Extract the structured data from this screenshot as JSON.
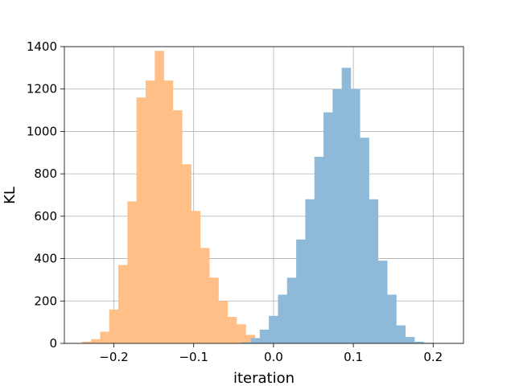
{
  "chart_data": {
    "type": "histogram",
    "title": "",
    "xlabel": "iteration",
    "ylabel": "KL",
    "xlim": [
      -0.262,
      0.238
    ],
    "ylim": [
      0,
      1400
    ],
    "xticks": [
      -0.2,
      -0.1,
      0.0,
      0.1,
      0.2
    ],
    "xtick_labels": [
      "−0.2",
      "−0.1",
      "0.0",
      "0.1",
      "0.2"
    ],
    "yticks": [
      0,
      200,
      400,
      600,
      800,
      1000,
      1200,
      1400
    ],
    "ytick_labels": [
      "0",
      "200",
      "400",
      "600",
      "800",
      "1000",
      "1200",
      "1400"
    ],
    "grid": true,
    "legend": "none",
    "bin_width": 0.0114,
    "series": [
      {
        "color": "#ffbf86",
        "bin_start": -0.24,
        "values": [
          8,
          20,
          55,
          160,
          370,
          670,
          1160,
          1240,
          1380,
          1240,
          1100,
          845,
          625,
          450,
          310,
          200,
          125,
          90,
          40,
          20,
          8,
          3
        ]
      },
      {
        "color": "#8fb9d9",
        "bin_start": -0.04,
        "values": [
          5,
          25,
          65,
          130,
          230,
          310,
          490,
          680,
          880,
          1090,
          1200,
          1300,
          1200,
          970,
          680,
          390,
          230,
          85,
          30,
          8,
          3
        ]
      }
    ]
  }
}
